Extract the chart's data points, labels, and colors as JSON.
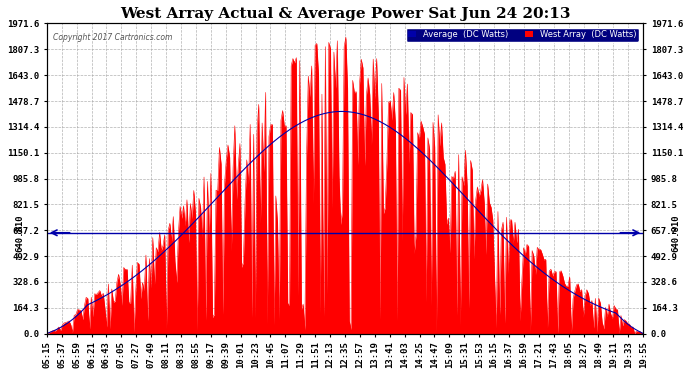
{
  "title": "West Array Actual & Average Power Sat Jun 24 20:13",
  "copyright": "Copyright 2017 Cartronics.com",
  "background_color": "#ffffff",
  "plot_bg_color": "#ffffff",
  "legend_labels": [
    "Average  (DC Watts)",
    "West Array  (DC Watts)"
  ],
  "legend_colors": [
    "#0000aa",
    "#ff0000"
  ],
  "yticks": [
    0.0,
    164.3,
    328.6,
    492.9,
    657.2,
    821.5,
    985.8,
    1150.1,
    1314.4,
    1478.7,
    1643.0,
    1807.3,
    1971.6
  ],
  "yline_value": 640.81,
  "yline_label": "640.810",
  "ylim": [
    0.0,
    1971.6
  ],
  "grid_color": "#aaaaaa",
  "title_color": "#000000",
  "tick_color": "#000000",
  "west_array_color": "#ff0000",
  "average_color": "#0000aa",
  "xtick_labels": [
    "05:15",
    "05:37",
    "05:59",
    "06:21",
    "06:43",
    "07:05",
    "07:27",
    "07:49",
    "08:11",
    "08:33",
    "08:55",
    "09:17",
    "09:39",
    "10:01",
    "10:23",
    "10:45",
    "11:07",
    "11:29",
    "11:51",
    "12:13",
    "12:35",
    "12:57",
    "13:19",
    "13:41",
    "14:03",
    "14:25",
    "14:47",
    "15:09",
    "15:31",
    "15:53",
    "16:15",
    "16:37",
    "16:59",
    "17:21",
    "17:43",
    "18:05",
    "18:27",
    "18:49",
    "19:11",
    "19:33",
    "19:55"
  ]
}
